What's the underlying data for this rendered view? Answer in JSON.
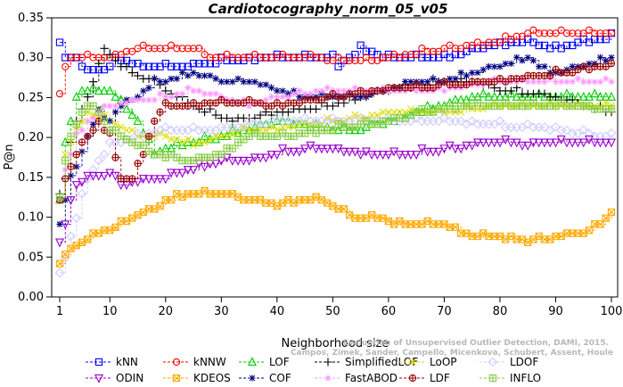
{
  "chart_data": {
    "type": "line",
    "title": "Cardiotocography_norm_05_v05",
    "xlabel": "Neighborhood size",
    "ylabel": "P@n",
    "xlim": [
      1,
      100
    ],
    "ylim": [
      0,
      0.35
    ],
    "xticks": [
      "1",
      "10",
      "20",
      "30",
      "40",
      "50",
      "60",
      "70",
      "80",
      "90",
      "100"
    ],
    "yticks": [
      "0.00",
      "0.05",
      "0.10",
      "0.15",
      "0.20",
      "0.25",
      "0.30",
      "0.35"
    ],
    "watermark": [
      "Campos, Zimek, Sander, Campello, Micenkova, Schubert, Assent, Houle",
      "Evaluation of Unsupervised Outlier Detection, DAMI, 2015."
    ],
    "series": [
      {
        "name": "kNN",
        "color": "#0000ff",
        "marker": "square",
        "keypoints": [
          [
            1,
            0.32
          ],
          [
            2,
            0.3
          ],
          [
            4,
            0.3
          ],
          [
            5,
            0.285
          ],
          [
            10,
            0.285
          ],
          [
            11,
            0.3
          ],
          [
            15,
            0.29
          ],
          [
            25,
            0.29
          ],
          [
            30,
            0.295
          ],
          [
            40,
            0.3
          ],
          [
            50,
            0.3
          ],
          [
            51,
            0.29
          ],
          [
            55,
            0.31
          ],
          [
            60,
            0.3
          ],
          [
            70,
            0.3
          ],
          [
            78,
            0.315
          ],
          [
            85,
            0.32
          ],
          [
            90,
            0.31
          ],
          [
            95,
            0.32
          ],
          [
            100,
            0.325
          ]
        ]
      },
      {
        "name": "kNNW",
        "color": "#ff0000",
        "marker": "circle",
        "keypoints": [
          [
            1,
            0.25
          ],
          [
            2,
            0.29
          ],
          [
            3,
            0.3
          ],
          [
            6,
            0.3
          ],
          [
            10,
            0.3
          ],
          [
            15,
            0.31
          ],
          [
            20,
            0.31
          ],
          [
            25,
            0.31
          ],
          [
            28,
            0.3
          ],
          [
            35,
            0.3
          ],
          [
            45,
            0.3
          ],
          [
            55,
            0.295
          ],
          [
            60,
            0.3
          ],
          [
            70,
            0.31
          ],
          [
            80,
            0.32
          ],
          [
            85,
            0.33
          ],
          [
            90,
            0.33
          ],
          [
            100,
            0.33
          ]
        ]
      },
      {
        "name": "LOF",
        "color": "#00cc00",
        "marker": "triangle-up",
        "keypoints": [
          [
            1,
            0.12
          ],
          [
            2,
            0.19
          ],
          [
            3,
            0.22
          ],
          [
            4,
            0.25
          ],
          [
            5,
            0.26
          ],
          [
            10,
            0.26
          ],
          [
            15,
            0.22
          ],
          [
            18,
            0.18
          ],
          [
            22,
            0.19
          ],
          [
            30,
            0.2
          ],
          [
            35,
            0.21
          ],
          [
            40,
            0.22
          ],
          [
            50,
            0.21
          ],
          [
            55,
            0.21
          ],
          [
            60,
            0.22
          ],
          [
            65,
            0.23
          ],
          [
            70,
            0.24
          ],
          [
            75,
            0.25
          ],
          [
            80,
            0.25
          ],
          [
            90,
            0.25
          ],
          [
            100,
            0.25
          ]
        ]
      },
      {
        "name": "SimplifiedLOF",
        "color": "#000000",
        "marker": "plus",
        "keypoints": [
          [
            1,
            0.13
          ],
          [
            2,
            0.15
          ],
          [
            3,
            0.19
          ],
          [
            4,
            0.22
          ],
          [
            6,
            0.25
          ],
          [
            8,
            0.29
          ],
          [
            9,
            0.31
          ],
          [
            12,
            0.29
          ],
          [
            14,
            0.28
          ],
          [
            18,
            0.27
          ],
          [
            22,
            0.25
          ],
          [
            28,
            0.23
          ],
          [
            32,
            0.22
          ],
          [
            40,
            0.23
          ],
          [
            50,
            0.24
          ],
          [
            60,
            0.26
          ],
          [
            70,
            0.27
          ],
          [
            75,
            0.27
          ],
          [
            80,
            0.26
          ],
          [
            85,
            0.255
          ],
          [
            90,
            0.25
          ],
          [
            95,
            0.24
          ],
          [
            100,
            0.23
          ]
        ]
      },
      {
        "name": "LoOP",
        "color": "#dddd00",
        "marker": "x",
        "keypoints": [
          [
            1,
            0.12
          ],
          [
            2,
            0.18
          ],
          [
            4,
            0.21
          ],
          [
            6,
            0.23
          ],
          [
            10,
            0.22
          ],
          [
            15,
            0.2
          ],
          [
            20,
            0.2
          ],
          [
            25,
            0.19
          ],
          [
            30,
            0.2
          ],
          [
            35,
            0.21
          ],
          [
            40,
            0.21
          ],
          [
            50,
            0.22
          ],
          [
            60,
            0.23
          ],
          [
            70,
            0.23
          ],
          [
            80,
            0.24
          ],
          [
            90,
            0.24
          ],
          [
            100,
            0.24
          ]
        ]
      },
      {
        "name": "LDOF",
        "color": "#ccccff",
        "marker": "diamond",
        "keypoints": [
          [
            1,
            0.03
          ],
          [
            2,
            0.05
          ],
          [
            4,
            0.1
          ],
          [
            6,
            0.15
          ],
          [
            8,
            0.17
          ],
          [
            10,
            0.19
          ],
          [
            15,
            0.2
          ],
          [
            20,
            0.21
          ],
          [
            25,
            0.21
          ],
          [
            30,
            0.21
          ],
          [
            40,
            0.22
          ],
          [
            50,
            0.22
          ],
          [
            60,
            0.22
          ],
          [
            70,
            0.22
          ],
          [
            80,
            0.215
          ],
          [
            90,
            0.21
          ],
          [
            100,
            0.2
          ]
        ]
      },
      {
        "name": "ODIN",
        "color": "#9900cc",
        "marker": "triangle-down",
        "keypoints": [
          [
            1,
            0.065
          ],
          [
            2,
            0.09
          ],
          [
            3,
            0.12
          ],
          [
            4,
            0.14
          ],
          [
            6,
            0.15
          ],
          [
            10,
            0.155
          ],
          [
            12,
            0.14
          ],
          [
            15,
            0.145
          ],
          [
            20,
            0.15
          ],
          [
            25,
            0.16
          ],
          [
            30,
            0.17
          ],
          [
            35,
            0.17
          ],
          [
            40,
            0.18
          ],
          [
            45,
            0.185
          ],
          [
            50,
            0.185
          ],
          [
            55,
            0.18
          ],
          [
            60,
            0.18
          ],
          [
            65,
            0.18
          ],
          [
            70,
            0.185
          ],
          [
            75,
            0.19
          ],
          [
            80,
            0.195
          ],
          [
            85,
            0.19
          ],
          [
            90,
            0.195
          ],
          [
            95,
            0.195
          ],
          [
            100,
            0.195
          ]
        ]
      },
      {
        "name": "KDEOS",
        "color": "#ffaa00",
        "marker": "boxed-x",
        "keypoints": [
          [
            1,
            0.04
          ],
          [
            3,
            0.06
          ],
          [
            5,
            0.07
          ],
          [
            8,
            0.08
          ],
          [
            10,
            0.085
          ],
          [
            14,
            0.1
          ],
          [
            18,
            0.11
          ],
          [
            20,
            0.12
          ],
          [
            22,
            0.125
          ],
          [
            26,
            0.13
          ],
          [
            30,
            0.13
          ],
          [
            32,
            0.125
          ],
          [
            36,
            0.12
          ],
          [
            40,
            0.115
          ],
          [
            44,
            0.12
          ],
          [
            48,
            0.12
          ],
          [
            50,
            0.115
          ],
          [
            54,
            0.1
          ],
          [
            58,
            0.1
          ],
          [
            62,
            0.09
          ],
          [
            66,
            0.09
          ],
          [
            70,
            0.09
          ],
          [
            73,
            0.08
          ],
          [
            77,
            0.075
          ],
          [
            80,
            0.075
          ],
          [
            85,
            0.07
          ],
          [
            90,
            0.075
          ],
          [
            95,
            0.08
          ],
          [
            98,
            0.09
          ],
          [
            100,
            0.105
          ]
        ]
      },
      {
        "name": "COF",
        "color": "#000080",
        "marker": "asterisk",
        "keypoints": [
          [
            1,
            0.09
          ],
          [
            2,
            0.12
          ],
          [
            3,
            0.15
          ],
          [
            4,
            0.165
          ],
          [
            6,
            0.2
          ],
          [
            8,
            0.23
          ],
          [
            10,
            0.22
          ],
          [
            12,
            0.24
          ],
          [
            15,
            0.25
          ],
          [
            18,
            0.27
          ],
          [
            20,
            0.27
          ],
          [
            25,
            0.28
          ],
          [
            30,
            0.27
          ],
          [
            35,
            0.27
          ],
          [
            40,
            0.26
          ],
          [
            45,
            0.25
          ],
          [
            50,
            0.25
          ],
          [
            55,
            0.25
          ],
          [
            60,
            0.26
          ],
          [
            65,
            0.27
          ],
          [
            70,
            0.27
          ],
          [
            75,
            0.28
          ],
          [
            80,
            0.29
          ],
          [
            85,
            0.3
          ],
          [
            88,
            0.285
          ],
          [
            90,
            0.28
          ],
          [
            95,
            0.29
          ],
          [
            100,
            0.3
          ]
        ]
      },
      {
        "name": "FastABOD",
        "color": "#ff99ff",
        "marker": "star",
        "keypoints": [
          [
            1,
            0.12
          ],
          [
            2,
            0.16
          ],
          [
            4,
            0.2
          ],
          [
            6,
            0.22
          ],
          [
            10,
            0.24
          ],
          [
            14,
            0.245
          ],
          [
            20,
            0.25
          ],
          [
            25,
            0.26
          ],
          [
            30,
            0.25
          ],
          [
            35,
            0.24
          ],
          [
            40,
            0.25
          ],
          [
            50,
            0.26
          ],
          [
            60,
            0.26
          ],
          [
            70,
            0.26
          ],
          [
            80,
            0.27
          ],
          [
            90,
            0.27
          ],
          [
            100,
            0.27
          ]
        ]
      },
      {
        "name": "LDF",
        "color": "#990000",
        "marker": "circled-plus",
        "keypoints": [
          [
            1,
            0.12
          ],
          [
            2,
            0.15
          ],
          [
            4,
            0.18
          ],
          [
            6,
            0.2
          ],
          [
            8,
            0.22
          ],
          [
            10,
            0.2
          ],
          [
            12,
            0.15
          ],
          [
            14,
            0.15
          ],
          [
            16,
            0.18
          ],
          [
            18,
            0.22
          ],
          [
            20,
            0.24
          ],
          [
            25,
            0.24
          ],
          [
            30,
            0.245
          ],
          [
            40,
            0.24
          ],
          [
            50,
            0.25
          ],
          [
            55,
            0.255
          ],
          [
            60,
            0.26
          ],
          [
            70,
            0.265
          ],
          [
            80,
            0.27
          ],
          [
            90,
            0.28
          ],
          [
            100,
            0.29
          ]
        ]
      },
      {
        "name": "INFLO",
        "color": "#88cc44",
        "marker": "boxed-plus",
        "keypoints": [
          [
            1,
            0.12
          ],
          [
            2,
            0.17
          ],
          [
            3,
            0.2
          ],
          [
            5,
            0.23
          ],
          [
            7,
            0.24
          ],
          [
            10,
            0.21
          ],
          [
            12,
            0.2
          ],
          [
            15,
            0.19
          ],
          [
            18,
            0.18
          ],
          [
            20,
            0.175
          ],
          [
            25,
            0.17
          ],
          [
            30,
            0.18
          ],
          [
            35,
            0.2
          ],
          [
            40,
            0.2
          ],
          [
            50,
            0.21
          ],
          [
            60,
            0.22
          ],
          [
            65,
            0.23
          ],
          [
            70,
            0.235
          ],
          [
            75,
            0.24
          ],
          [
            80,
            0.24
          ],
          [
            90,
            0.24
          ],
          [
            100,
            0.235
          ]
        ]
      }
    ]
  }
}
